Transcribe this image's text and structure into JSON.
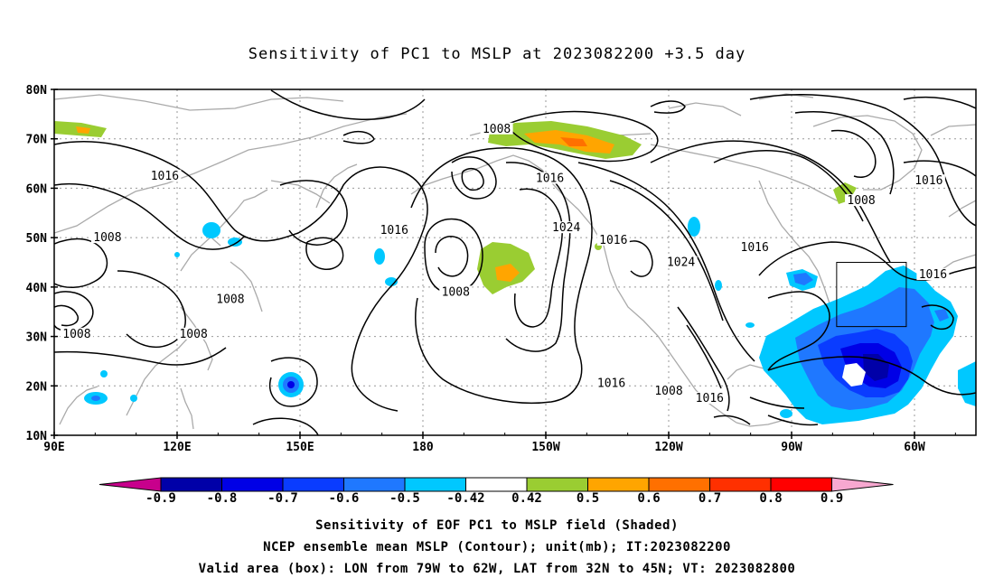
{
  "title": "Sensitivity of PC1 to MSLP at 2023082200 +3.5 day",
  "axes": {
    "lat_labels": [
      "80N",
      "70N",
      "60N",
      "50N",
      "40N",
      "30N",
      "20N",
      "10N"
    ],
    "lon_labels": [
      "90E",
      "120E",
      "150E",
      "180",
      "150W",
      "120W",
      "90W",
      "60W"
    ]
  },
  "contour_labels": [
    {
      "text": "1016",
      "lon": 117,
      "lat": 62.5
    },
    {
      "text": "1008",
      "lon": 103,
      "lat": 50
    },
    {
      "text": "1008",
      "lon": 133,
      "lat": 37.5
    },
    {
      "text": "1008",
      "lon": 95.5,
      "lat": 30.5
    },
    {
      "text": "1008",
      "lon": 124,
      "lat": 30.5
    },
    {
      "text": "1016",
      "lon": 173,
      "lat": 51.5
    },
    {
      "text": "1008",
      "lon": 198,
      "lat": 72
    },
    {
      "text": "1008",
      "lon": 188,
      "lat": 39
    },
    {
      "text": "1016",
      "lon": 211,
      "lat": 62
    },
    {
      "text": "1024",
      "lon": 215,
      "lat": 52
    },
    {
      "text": "1016",
      "lon": 226.5,
      "lat": 49.5
    },
    {
      "text": "1024",
      "lon": 243,
      "lat": 45
    },
    {
      "text": "1016",
      "lon": 261,
      "lat": 48
    },
    {
      "text": "1008",
      "lon": 287,
      "lat": 57.5
    },
    {
      "text": "1016",
      "lon": 303.5,
      "lat": 61.5
    },
    {
      "text": "1016",
      "lon": 304.5,
      "lat": 42.5
    },
    {
      "text": "1016",
      "lon": 226,
      "lat": 20.5
    },
    {
      "text": "1008",
      "lon": 240,
      "lat": 19
    },
    {
      "text": "1016",
      "lon": 250,
      "lat": 17.5
    }
  ],
  "colorbar": {
    "levels": [
      "-0.9",
      "-0.8",
      "-0.7",
      "-0.6",
      "-0.5",
      "-0.42",
      "0.42",
      "0.5",
      "0.6",
      "0.7",
      "0.8",
      "0.9"
    ],
    "colors": [
      "#0000a8",
      "#0000e6",
      "#0a3cff",
      "#1f78ff",
      "#00c8ff",
      "#ffffff",
      "#9acd32",
      "#ffa500",
      "#ff7000",
      "#ff3000",
      "#ff0000"
    ],
    "low_extend_color": "#c8008c",
    "high_extend_color": "#f7a8d0"
  },
  "footer": {
    "line1": "Sensitivity of EOF PC1 to MSLP field (Shaded)",
    "line2": "NCEP ensemble mean MSLP (Contour); unit(mb); IT:2023082200",
    "line3": "Valid area (box): LON from 79W to 62W, LAT from 32N to 45N; VT: 2023082800"
  },
  "valid_box": {
    "lon_min": 281,
    "lon_max": 298,
    "lat_min": 32,
    "lat_max": 45
  }
}
